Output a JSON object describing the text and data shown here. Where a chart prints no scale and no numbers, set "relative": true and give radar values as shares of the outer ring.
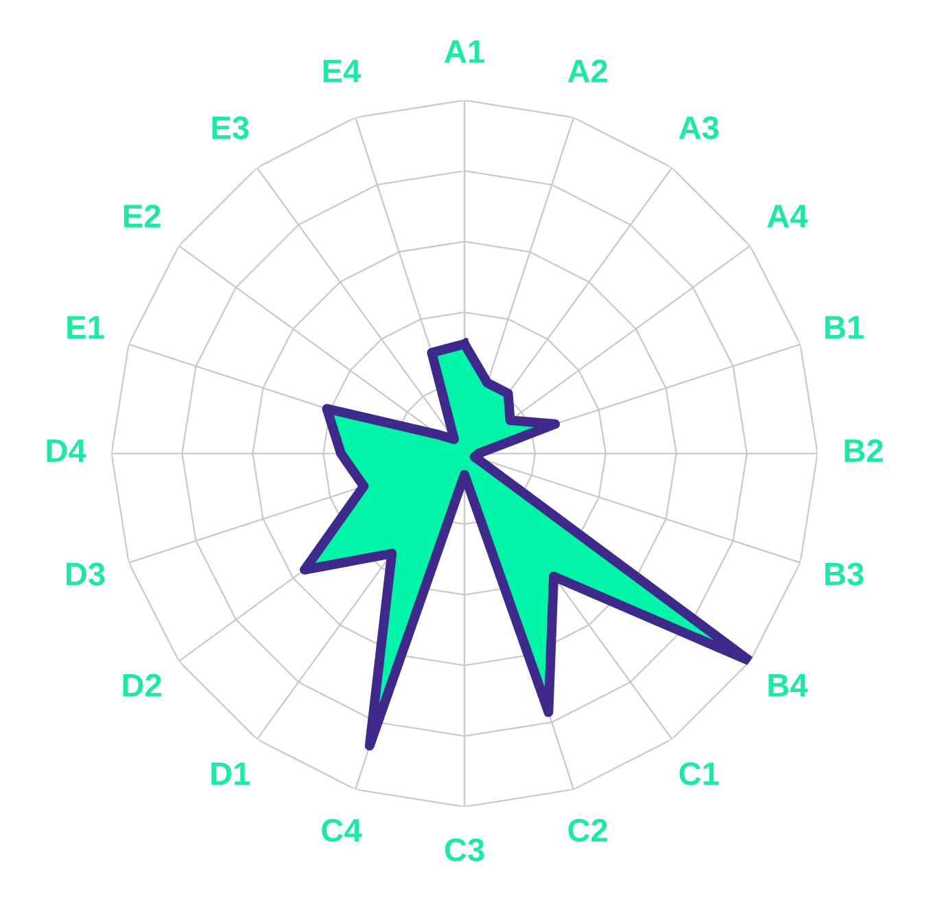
{
  "chart_data": {
    "type": "radar",
    "relative": true,
    "grid": true,
    "categories": [
      "A1",
      "A2",
      "A3",
      "A4",
      "B1",
      "B2",
      "B3",
      "B4",
      "C1",
      "C2",
      "C3",
      "C4",
      "D1",
      "D2",
      "D3",
      "D4",
      "E1",
      "E2",
      "E3",
      "E4"
    ],
    "series": [
      {
        "color": "#3f2a8c",
        "values": [
          0.31,
          0.21,
          0.21,
          0.16,
          0.27,
          0.04,
          0.03,
          1.0,
          0.43,
          0.77,
          0.06,
          0.87,
          0.35,
          0.56,
          0.3,
          0.35,
          0.41,
          0.09,
          0.05,
          0.3
        ]
      }
    ]
  }
}
